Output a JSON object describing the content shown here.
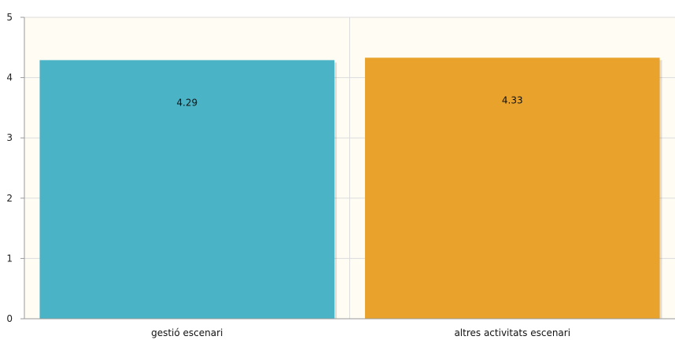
{
  "chart_data": {
    "type": "bar",
    "categories": [
      "gestió escenari",
      "altres activitats escenari"
    ],
    "values": [
      4.29,
      4.33
    ],
    "data_labels": [
      "4.29",
      "4.33"
    ],
    "colors": [
      "#4bb3c6",
      "#e9a22c"
    ],
    "ylim": [
      0,
      5
    ],
    "yticks": [
      "0",
      "1",
      "2",
      "3",
      "4",
      "5"
    ],
    "grid": true,
    "background": "#fefcf3",
    "title": "",
    "xlabel": "",
    "ylabel": ""
  }
}
